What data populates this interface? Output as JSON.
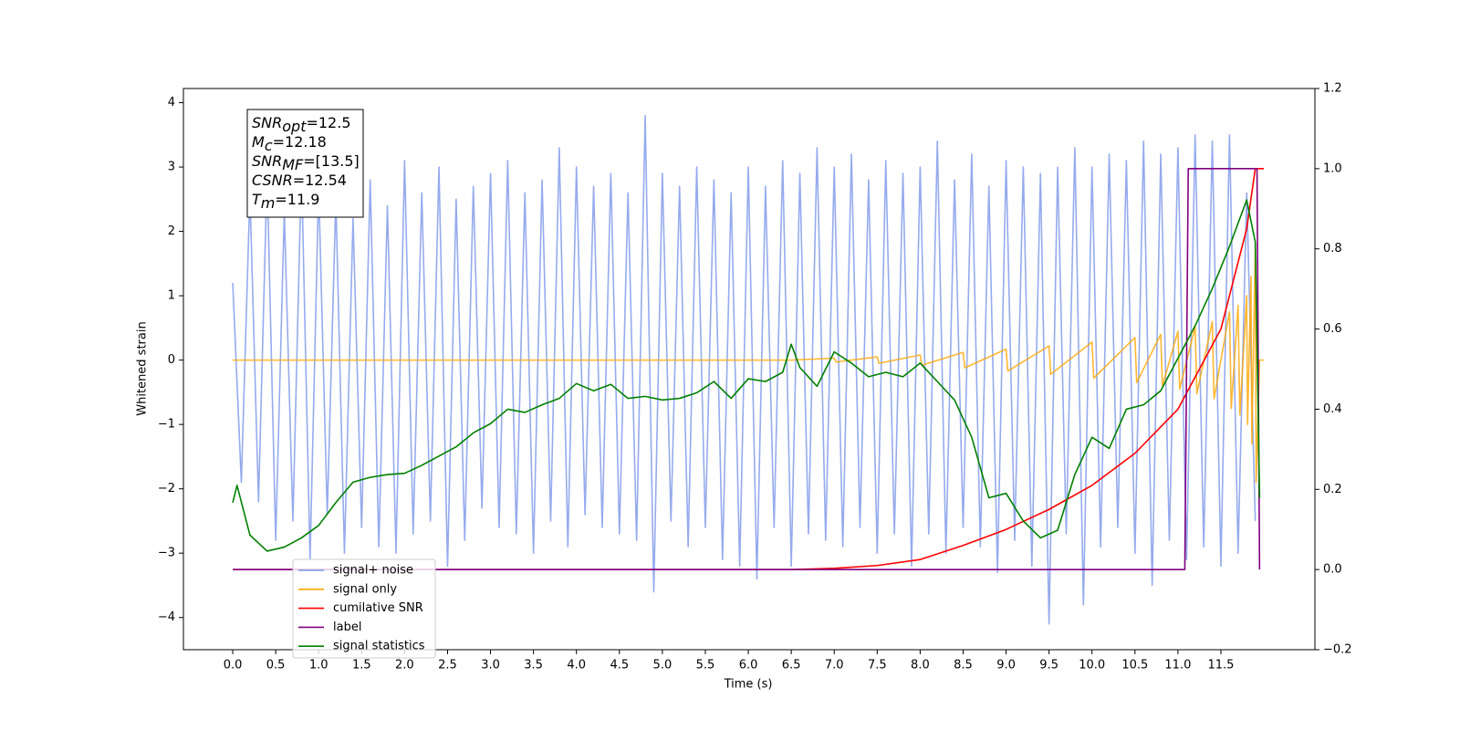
{
  "chart_data": {
    "type": "line",
    "xlabel": "Time (s)",
    "ylabel": "Whitened strain",
    "xlim": [
      -0.574,
      12.594
    ],
    "xticks": [
      {
        "value": 0,
        "label": "0.0"
      },
      0.5,
      {
        "value": 1,
        "label": "1.0"
      },
      1.5,
      {
        "value": 2,
        "label": "2.0"
      },
      2.5,
      {
        "value": 3,
        "label": "3.0"
      },
      3.5,
      {
        "value": 4,
        "label": "4.0"
      },
      4.5,
      {
        "value": 5,
        "label": "5.0"
      },
      5.5,
      {
        "value": 6,
        "label": "6.0"
      },
      6.5,
      {
        "value": 7,
        "label": "7.0"
      },
      7.5,
      {
        "value": 8,
        "label": "8.0"
      },
      8.5,
      {
        "value": 9,
        "label": "9.0"
      },
      9.5,
      {
        "value": 10,
        "label": "10.0"
      },
      10.5,
      {
        "value": 11,
        "label": "11.0"
      },
      11.5
    ],
    "ylim": [
      -4.5,
      4.22
    ],
    "yticks": [
      {
        "value": -4,
        "label": "−4"
      },
      {
        "value": -3,
        "label": "−3"
      },
      {
        "value": -2,
        "label": "−2"
      },
      {
        "value": -1,
        "label": "−1"
      },
      0,
      1,
      2,
      3,
      4
    ],
    "y2lim": [
      -0.2,
      1.2
    ],
    "y2ticks": [
      {
        "value": -0.2,
        "label": "−0.2"
      },
      {
        "value": 0,
        "label": "0.0"
      },
      0.2,
      0.4,
      0.6,
      0.8,
      {
        "value": 1,
        "label": "1.0"
      },
      1.2
    ],
    "legend": "lower left",
    "annotation": [
      {
        "main": "SNR",
        "sub": "opt",
        "text": "=12.5"
      },
      {
        "main": "M",
        "sub": "c",
        "text": "=12.18"
      },
      {
        "main": "SNR",
        "sub": "MF",
        "text": "=[13.5]"
      },
      {
        "main": "CSNR",
        "text": "=12.54"
      },
      {
        "main": "T",
        "sub": "m",
        "text": "=11.9"
      }
    ],
    "series": [
      {
        "name": "signal+ noise",
        "color": "#7a96e8",
        "x": [
          0.0,
          0.1,
          0.2,
          0.3,
          0.4,
          0.5,
          0.6,
          0.7,
          0.8,
          0.9,
          1.0,
          1.1,
          1.2,
          1.3,
          1.4,
          1.5,
          1.6,
          1.7,
          1.8,
          1.9,
          2.0,
          2.1,
          2.2,
          2.3,
          2.4,
          2.5,
          2.6,
          2.7,
          2.8,
          2.9,
          3.0,
          3.1,
          3.2,
          3.3,
          3.4,
          3.5,
          3.6,
          3.7,
          3.8,
          3.9,
          4.0,
          4.1,
          4.2,
          4.3,
          4.4,
          4.5,
          4.6,
          4.7,
          4.8,
          4.9,
          5.0,
          5.1,
          5.2,
          5.3,
          5.4,
          5.5,
          5.6,
          5.7,
          5.8,
          5.9,
          6.0,
          6.1,
          6.2,
          6.3,
          6.4,
          6.5,
          6.6,
          6.7,
          6.8,
          6.9,
          7.0,
          7.1,
          7.2,
          7.3,
          7.4,
          7.5,
          7.6,
          7.7,
          7.8,
          7.9,
          8.0,
          8.1,
          8.2,
          8.3,
          8.4,
          8.5,
          8.6,
          8.7,
          8.8,
          8.9,
          9.0,
          9.1,
          9.2,
          9.3,
          9.4,
          9.5,
          9.6,
          9.7,
          9.8,
          9.9,
          10.0,
          10.1,
          10.2,
          10.3,
          10.4,
          10.5,
          10.6,
          10.7,
          10.8,
          10.9,
          11.0,
          11.1,
          11.2,
          11.3,
          11.4,
          11.5,
          11.6,
          11.7,
          11.8,
          11.9
        ],
        "values": [
          1.2,
          -1.9,
          2.6,
          -2.2,
          2.9,
          -2.8,
          2.3,
          -2.5,
          3.0,
          -3.1,
          2.7,
          -2.4,
          2.5,
          -3.0,
          2.2,
          -2.6,
          2.8,
          -2.9,
          2.4,
          -3.0,
          3.1,
          -2.7,
          2.6,
          -2.5,
          3.0,
          -3.2,
          2.5,
          -2.8,
          2.7,
          -2.3,
          2.9,
          -2.6,
          3.1,
          -2.7,
          2.6,
          -3.0,
          2.8,
          -2.5,
          3.3,
          -2.9,
          3.0,
          -2.4,
          2.7,
          -2.6,
          2.9,
          -2.7,
          2.6,
          -2.8,
          3.8,
          -3.6,
          2.9,
          -2.5,
          2.7,
          -2.9,
          3.0,
          -2.6,
          2.8,
          -3.1,
          2.6,
          -3.2,
          3.0,
          -3.4,
          2.7,
          -2.6,
          3.1,
          -3.2,
          2.9,
          -2.7,
          3.3,
          -2.8,
          3.0,
          -2.9,
          3.2,
          -2.6,
          2.8,
          -3.0,
          3.1,
          -2.7,
          2.9,
          -3.2,
          3.0,
          -2.7,
          3.4,
          -3.0,
          2.8,
          -2.6,
          3.2,
          -2.9,
          2.7,
          -3.3,
          3.1,
          -2.8,
          3.0,
          -3.2,
          2.9,
          -4.1,
          3.0,
          -2.7,
          3.3,
          -3.8,
          3.0,
          -2.9,
          3.2,
          -2.6,
          3.1,
          -3.0,
          3.4,
          -3.5,
          3.2,
          -2.8,
          3.3,
          -3.1,
          3.5,
          -2.9,
          3.4,
          -3.2,
          3.5,
          -3.0,
          2.6,
          -2.5
        ]
      },
      {
        "name": "signal only",
        "color": "#ffa500",
        "x": [
          0,
          6.5,
          7.0,
          7.02,
          7.5,
          7.52,
          8.0,
          8.02,
          8.5,
          8.52,
          9.0,
          9.02,
          9.5,
          9.52,
          10.0,
          10.02,
          10.5,
          10.52,
          10.8,
          10.82,
          11.0,
          11.02,
          11.2,
          11.22,
          11.4,
          11.42,
          11.6,
          11.62,
          11.7,
          11.72,
          11.8,
          11.81,
          11.85,
          11.86,
          11.9,
          11.91,
          11.95,
          12.0
        ],
        "values": [
          0,
          0,
          0.03,
          -0.03,
          0.05,
          -0.05,
          0.08,
          -0.08,
          0.12,
          -0.12,
          0.17,
          -0.17,
          0.22,
          -0.22,
          0.28,
          -0.28,
          0.35,
          -0.35,
          0.4,
          -0.4,
          0.45,
          -0.45,
          0.52,
          -0.52,
          0.6,
          -0.6,
          0.75,
          -0.75,
          0.85,
          -0.85,
          1.0,
          -1.0,
          1.3,
          -1.3,
          1.8,
          -1.9,
          0,
          0
        ]
      },
      {
        "name": "cumilative SNR",
        "color": "#ff0000",
        "axis": "y2",
        "x": [
          0,
          6.5,
          7.0,
          7.5,
          8.0,
          8.5,
          9.0,
          9.5,
          10.0,
          10.5,
          11.0,
          11.5,
          11.8,
          11.9,
          12.0
        ],
        "values": [
          0,
          0,
          0.003,
          0.01,
          0.025,
          0.06,
          0.1,
          0.15,
          0.21,
          0.29,
          0.4,
          0.6,
          0.85,
          1.0,
          1.0
        ]
      },
      {
        "name": "label",
        "color": "#800080",
        "axis": "y2",
        "x": [
          0,
          11.08,
          11.12,
          11.92,
          11.95
        ],
        "values": [
          0,
          0,
          1,
          1,
          0
        ]
      },
      {
        "name": "signal statistics",
        "color": "#008000",
        "axis": "y2",
        "x": [
          0.0,
          0.05,
          0.2,
          0.4,
          0.6,
          0.8,
          1.0,
          1.2,
          1.4,
          1.6,
          1.8,
          2.0,
          2.2,
          2.4,
          2.6,
          2.8,
          3.0,
          3.2,
          3.4,
          3.6,
          3.8,
          4.0,
          4.2,
          4.4,
          4.6,
          4.8,
          5.0,
          5.2,
          5.4,
          5.6,
          5.8,
          6.0,
          6.2,
          6.4,
          6.5,
          6.6,
          6.8,
          7.0,
          7.2,
          7.4,
          7.6,
          7.8,
          8.0,
          8.2,
          8.4,
          8.6,
          8.8,
          9.0,
          9.2,
          9.4,
          9.6,
          9.8,
          10.0,
          10.2,
          10.4,
          10.6,
          10.8,
          11.0,
          11.2,
          11.4,
          11.6,
          11.8,
          11.9,
          11.95
        ],
        "values": [
          0.167,
          0.21,
          0.086,
          0.046,
          0.056,
          0.079,
          0.11,
          0.167,
          0.218,
          0.23,
          0.237,
          0.24,
          0.26,
          0.283,
          0.306,
          0.341,
          0.364,
          0.4,
          0.392,
          0.411,
          0.427,
          0.464,
          0.446,
          0.462,
          0.427,
          0.432,
          0.423,
          0.427,
          0.441,
          0.469,
          0.427,
          0.476,
          0.469,
          0.492,
          0.562,
          0.504,
          0.457,
          0.543,
          0.515,
          0.481,
          0.492,
          0.481,
          0.515,
          0.469,
          0.423,
          0.33,
          0.179,
          0.19,
          0.121,
          0.079,
          0.098,
          0.237,
          0.33,
          0.302,
          0.4,
          0.411,
          0.446,
          0.527,
          0.608,
          0.701,
          0.806,
          0.922,
          0.817,
          0.179
        ]
      }
    ]
  }
}
